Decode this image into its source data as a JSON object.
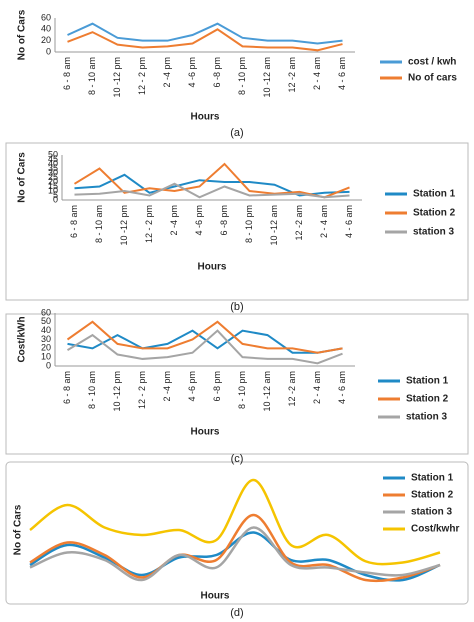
{
  "chart_data": [
    {
      "type": "line",
      "caption": "(a)",
      "y_label": "No of Cars",
      "x_label": "Hours",
      "legend": "right",
      "categories": [
        "6 - 8 am",
        "8 - 10 am",
        "10 -12 pm",
        "12 - 2 pm",
        "2 -4 pm",
        "4 -6 pm",
        "6 -8 pm",
        "8 - 10 pm",
        "10 -12 am",
        "12 -2 am",
        "2 - 4 am",
        "4 - 6 am"
      ],
      "ylim": [
        0,
        60
      ],
      "yticks": [
        0,
        20,
        40,
        60
      ],
      "series": [
        {
          "name": "cost / kwh",
          "color": "#4a9bd6",
          "values": [
            30,
            50,
            25,
            20,
            20,
            30,
            50,
            25,
            20,
            20,
            15,
            20
          ]
        },
        {
          "name": "No of cars",
          "color": "#ee7d31",
          "values": [
            18,
            35,
            13,
            8,
            10,
            15,
            40,
            10,
            8,
            8,
            3,
            14
          ]
        }
      ]
    },
    {
      "type": "line",
      "caption": "(b)",
      "y_label": "No of Cars",
      "x_label": "Hours",
      "legend": "right",
      "categories": [
        "6 - 8 am",
        "8 - 10 am",
        "10 -12 pm",
        "12 - 2 pm",
        "2 -4 pm",
        "4 -6 pm",
        "6 -8 pm",
        "8 - 10 pm",
        "10 -12 am",
        "12 -2 am",
        "2 - 4 am",
        "4 - 6 am"
      ],
      "ylim": [
        0,
        50
      ],
      "yticks": [
        0,
        5,
        10,
        15,
        20,
        25,
        30,
        35,
        40,
        45,
        50
      ],
      "series": [
        {
          "name": "Station 1",
          "color": "#1f8ac6",
          "values": [
            13,
            15,
            28,
            8,
            15,
            22,
            20,
            20,
            17,
            5,
            8,
            9
          ]
        },
        {
          "name": "Station 2",
          "color": "#ee7d31",
          "values": [
            18,
            35,
            8,
            13,
            10,
            15,
            40,
            10,
            7,
            9,
            3,
            14
          ]
        },
        {
          "name": "station 3",
          "color": "#a5a5a5",
          "values": [
            6,
            7,
            10,
            5,
            18,
            3,
            15,
            5,
            6,
            7,
            3,
            5
          ]
        }
      ]
    },
    {
      "type": "line",
      "caption": "(c)",
      "y_label": "Cost/kWh",
      "x_label": "Hours",
      "legend": "right",
      "categories": [
        "6 - 8 am",
        "8 - 10 am",
        "10 -12 pm",
        "12 - 2 pm",
        "2 -4 pm",
        "4 -6 pm",
        "6 -8 pm",
        "8 - 10 pm",
        "10 -12 am",
        "12 -2 am",
        "2 - 4 am",
        "4 - 6 am"
      ],
      "ylim": [
        0,
        60
      ],
      "yticks": [
        0,
        10,
        20,
        30,
        40,
        50,
        60
      ],
      "series": [
        {
          "name": "Station 1",
          "color": "#1f8ac6",
          "values": [
            25,
            20,
            35,
            20,
            25,
            40,
            20,
            40,
            35,
            15,
            15,
            20
          ]
        },
        {
          "name": "Station 2",
          "color": "#ee7d31",
          "values": [
            30,
            50,
            25,
            20,
            20,
            30,
            50,
            25,
            20,
            20,
            15,
            20
          ]
        },
        {
          "name": "station 3",
          "color": "#a5a5a5",
          "values": [
            18,
            35,
            13,
            8,
            10,
            15,
            40,
            10,
            8,
            8,
            3,
            14
          ]
        }
      ]
    },
    {
      "type": "smooth-line",
      "caption": "(d)",
      "y_label": "No of Cars",
      "x_label": "Hours",
      "legend": "right",
      "series": [
        {
          "name": "Station 1",
          "color": "#1f8ac6",
          "values": [
            12,
            28,
            18,
            4,
            18,
            20,
            38,
            16,
            16,
            4,
            0,
            12
          ]
        },
        {
          "name": "Station 2",
          "color": "#ee7d31",
          "values": [
            14,
            30,
            20,
            2,
            20,
            16,
            52,
            14,
            12,
            0,
            2,
            12
          ]
        },
        {
          "name": "station 3",
          "color": "#a5a5a5",
          "values": [
            10,
            22,
            16,
            0,
            20,
            10,
            42,
            12,
            10,
            6,
            4,
            12
          ]
        },
        {
          "name": "Cost/kwhr",
          "color": "#f5c400",
          "values": [
            40,
            60,
            42,
            36,
            40,
            32,
            80,
            28,
            36,
            15,
            14,
            22
          ]
        }
      ]
    }
  ]
}
